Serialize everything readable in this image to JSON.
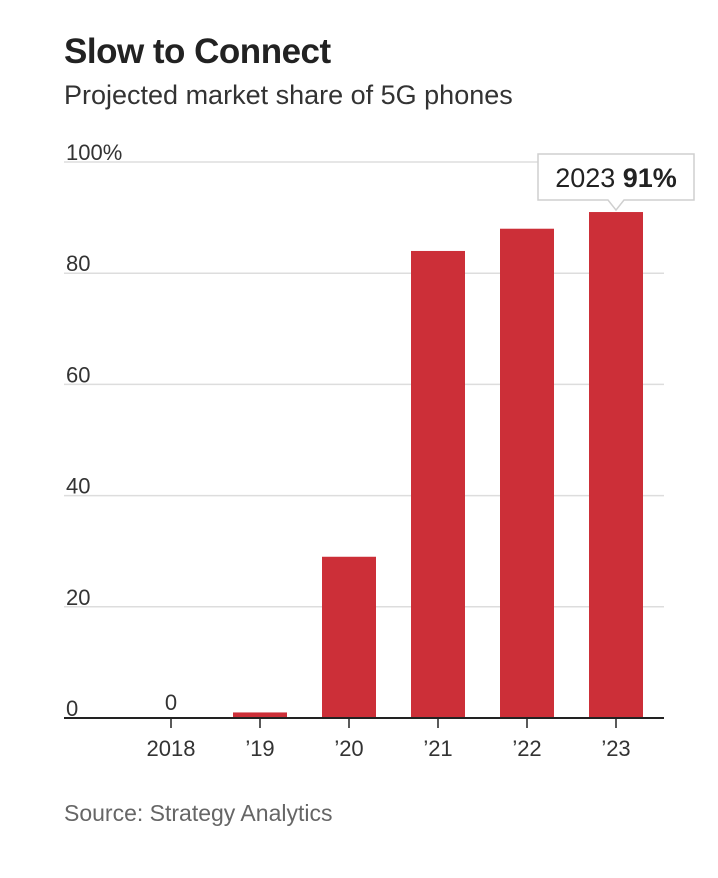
{
  "header": {
    "title": "Slow to Connect",
    "subtitle": "Projected market share of 5G phones"
  },
  "footer": {
    "source": "Source: Strategy Analytics"
  },
  "colors": {
    "bar": "#cc2f38",
    "grid": "#dddddd",
    "axis": "#222222"
  },
  "chart_data": {
    "type": "bar",
    "title": "Slow to Connect",
    "subtitle": "Projected market share of 5G phones",
    "categories": [
      "2018",
      "’19",
      "’20",
      "’21",
      "’22",
      "’23"
    ],
    "values": [
      0,
      1,
      29,
      84,
      88,
      91
    ],
    "value_labels": [
      "0",
      "",
      "",
      "",
      "",
      ""
    ],
    "ylim": [
      0,
      100
    ],
    "yticks": [
      0,
      20,
      40,
      60,
      80,
      100
    ],
    "ytick_labels": [
      "0",
      "20",
      "40",
      "60",
      "80",
      "100%"
    ],
    "xlabel": "",
    "ylabel": "",
    "grid": true,
    "annotation": {
      "category_index": 5,
      "year": "2023",
      "value_text": "91%"
    }
  }
}
